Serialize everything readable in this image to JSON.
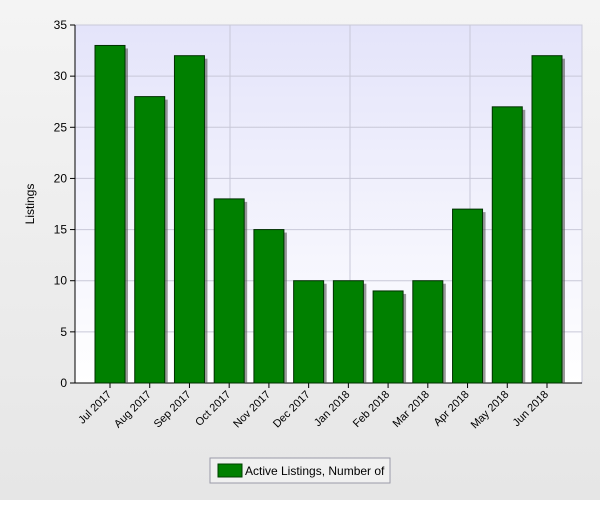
{
  "chart_data": {
    "type": "bar",
    "y_label": "Listings",
    "categories": [
      "Jul 2017",
      "Aug 2017",
      "Sep 2017",
      "Oct 2017",
      "Nov 2017",
      "Dec 2017",
      "Jan 2018",
      "Feb 2018",
      "Mar 2018",
      "Apr 2018",
      "May 2018",
      "Jun 2018"
    ],
    "series": [
      {
        "name": "Active Listings, Number of",
        "color": "#008000",
        "values": [
          33,
          28,
          32,
          18,
          15,
          10,
          10,
          9,
          10,
          17,
          27,
          32
        ]
      }
    ],
    "ylim": [
      0,
      35
    ],
    "yticks": [
      0,
      5,
      10,
      15,
      20,
      25,
      30,
      35
    ],
    "grid": true
  }
}
